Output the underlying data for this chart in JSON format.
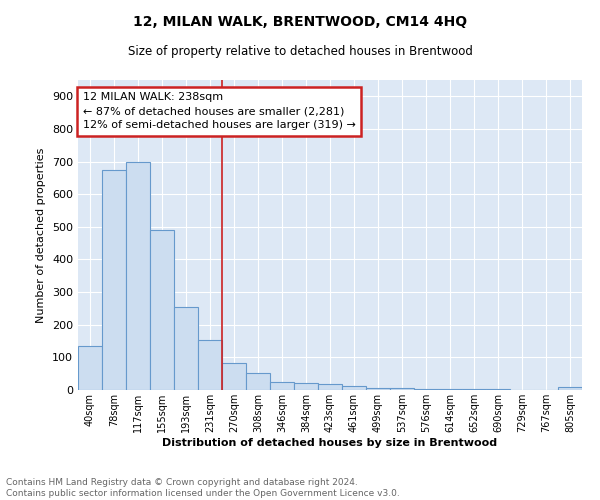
{
  "title": "12, MILAN WALK, BRENTWOOD, CM14 4HQ",
  "subtitle": "Size of property relative to detached houses in Brentwood",
  "xlabel": "Distribution of detached houses by size in Brentwood",
  "ylabel": "Number of detached properties",
  "bar_labels": [
    "40sqm",
    "78sqm",
    "117sqm",
    "155sqm",
    "193sqm",
    "231sqm",
    "270sqm",
    "308sqm",
    "346sqm",
    "384sqm",
    "423sqm",
    "461sqm",
    "499sqm",
    "537sqm",
    "576sqm",
    "614sqm",
    "652sqm",
    "690sqm",
    "729sqm",
    "767sqm",
    "805sqm"
  ],
  "bar_values": [
    135,
    675,
    700,
    490,
    253,
    153,
    84,
    52,
    26,
    20,
    19,
    12,
    7,
    5,
    3,
    2,
    2,
    2,
    1,
    1,
    8
  ],
  "bar_color": "#ccddf0",
  "bar_edge_color": "#6699cc",
  "property_line_x": 5.5,
  "property_line_color": "#cc2222",
  "annotation_text": "12 MILAN WALK: 238sqm\n← 87% of detached houses are smaller (2,281)\n12% of semi-detached houses are larger (319) →",
  "annotation_box_color": "#cc2222",
  "annotation_bg_color": "#ffffff",
  "ylim": [
    0,
    950
  ],
  "yticks": [
    0,
    100,
    200,
    300,
    400,
    500,
    600,
    700,
    800,
    900
  ],
  "fig_bg_color": "#ffffff",
  "plot_bg_color": "#dde8f5",
  "grid_color": "#ffffff",
  "footer": "Contains HM Land Registry data © Crown copyright and database right 2024.\nContains public sector information licensed under the Open Government Licence v3.0.",
  "footer_color": "#666666"
}
